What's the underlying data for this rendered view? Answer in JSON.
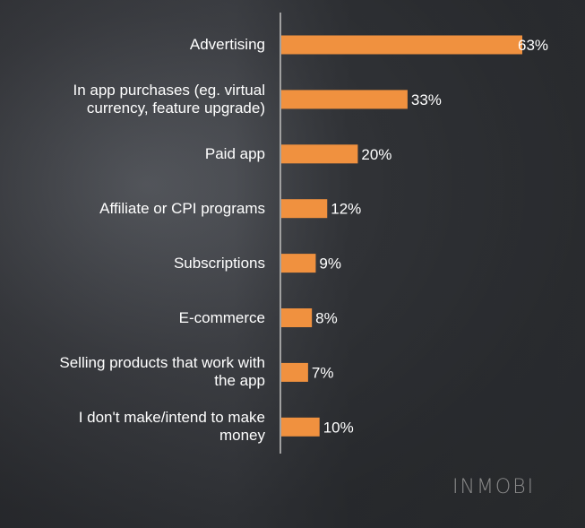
{
  "chart_data": {
    "type": "bar",
    "orientation": "horizontal",
    "categories": [
      "Advertising",
      "In app purchases (eg. virtual currency, feature upgrade)",
      "Paid app",
      "Affiliate or CPI programs",
      "Subscriptions",
      "E-commerce",
      "Selling products that work with the app",
      "I don't make/intend to make money"
    ],
    "category_lines": [
      [
        "Advertising"
      ],
      [
        "In app purchases (eg. virtual",
        "currency, feature upgrade)"
      ],
      [
        "Paid app"
      ],
      [
        "Affiliate or CPI programs"
      ],
      [
        "Subscriptions"
      ],
      [
        "E-commerce"
      ],
      [
        "Selling products that work with",
        "the app"
      ],
      [
        "I don't make/intend to make",
        "money"
      ]
    ],
    "values": [
      63,
      33,
      20,
      12,
      9,
      8,
      7,
      10
    ],
    "data_labels": [
      "63%",
      "33%",
      "20%",
      "12%",
      "9%",
      "8%",
      "7%",
      "10%"
    ],
    "unit": "%",
    "xlim": [
      0,
      63
    ],
    "grid": false,
    "bar_color": "#f0913f",
    "label_color": "#ffffff",
    "axis_color": "#a0a0a0"
  },
  "logo": "INMOBI"
}
